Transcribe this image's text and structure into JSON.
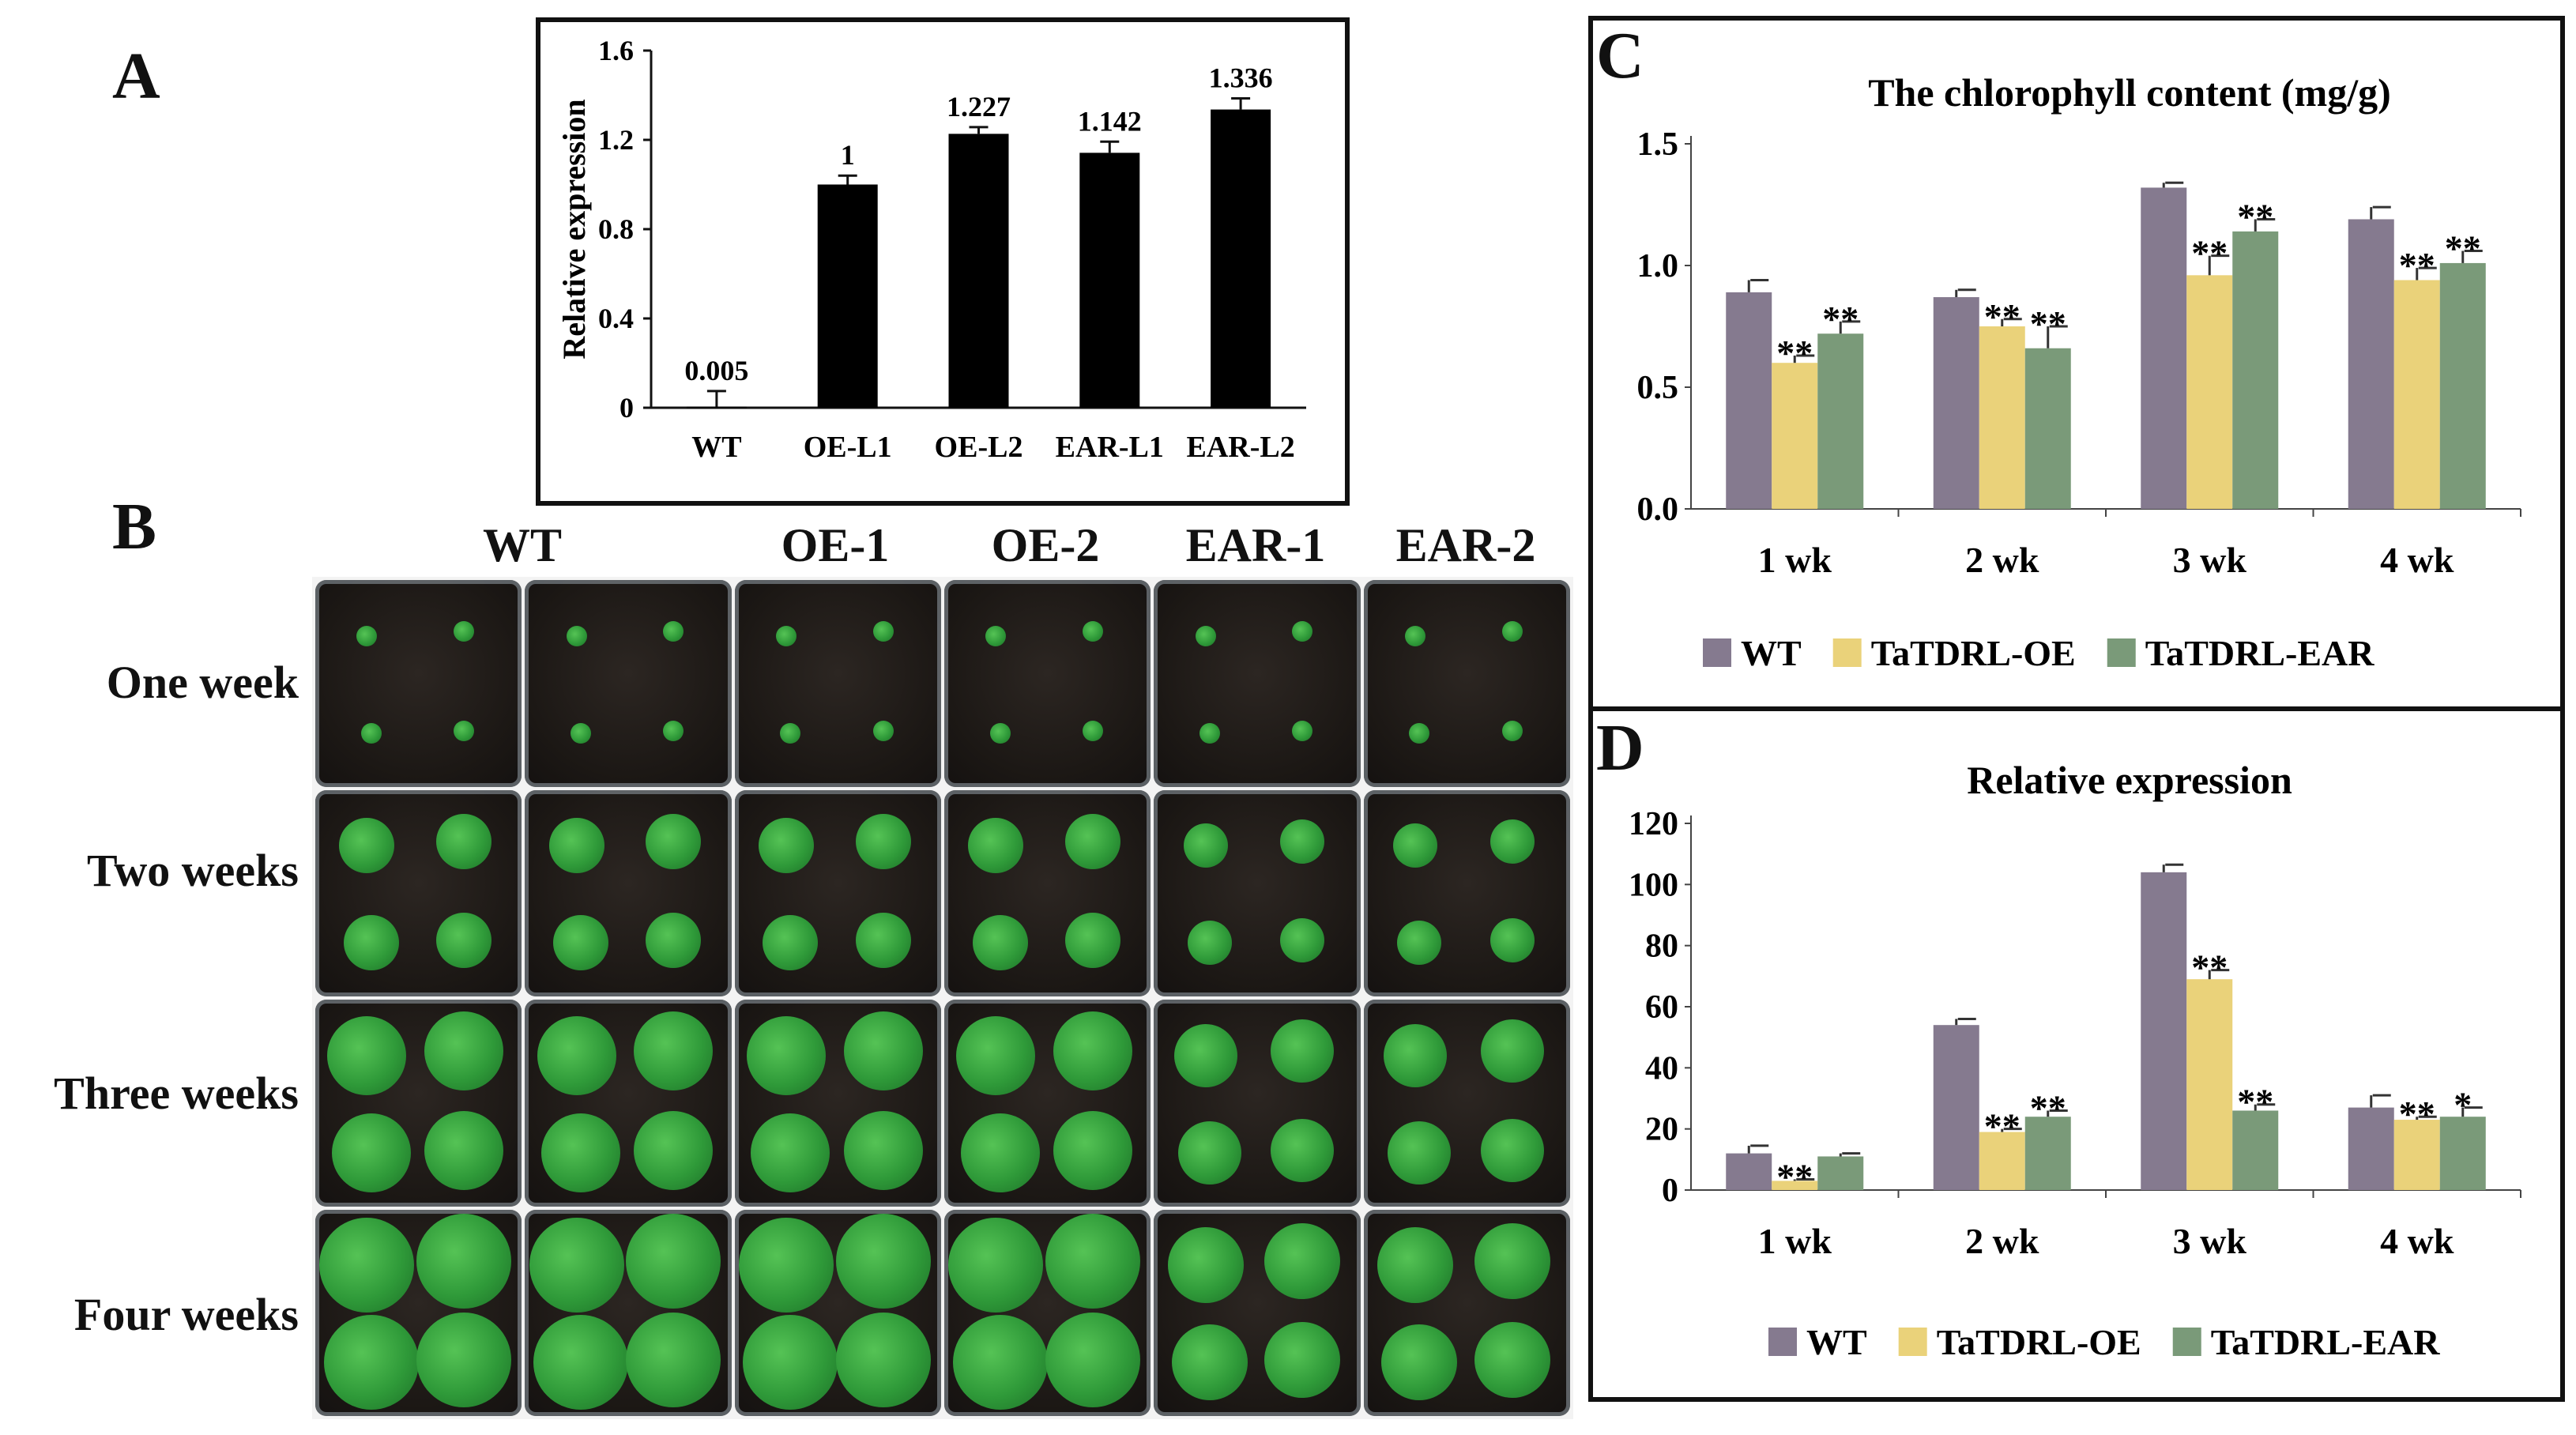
{
  "panels": {
    "a": "A",
    "b": "B",
    "c": "C",
    "d": "D"
  },
  "panel_b": {
    "columns": [
      "WT",
      "OE-1",
      "OE-2",
      "EAR-1",
      "EAR-2"
    ],
    "rows": [
      "One week",
      "Two weeks",
      "Three weeks",
      "Four weeks"
    ]
  },
  "colors": {
    "WT": "#857a8f",
    "TaTDRL-OE": "#ead27a",
    "TaTDRL-EAR": "#7a9a79",
    "bar_black": "#000000"
  },
  "chart_data": [
    {
      "id": "A",
      "type": "bar",
      "title": "",
      "xlabel": "",
      "ylabel": "Relative expression",
      "categories": [
        "WT",
        "OE-L1",
        "OE-L2",
        "EAR-L1",
        "EAR-L2"
      ],
      "values": [
        0.005,
        1,
        1.227,
        1.142,
        1.336
      ],
      "value_labels": [
        "0.005",
        "1",
        "1.227",
        "1.142",
        "1.336"
      ],
      "errors": [
        0.07,
        0.04,
        0.03,
        0.05,
        0.05
      ],
      "ylim": [
        0,
        1.6
      ],
      "yticks": [
        0,
        0.4,
        0.8,
        1.2,
        1.6
      ],
      "ytick_labels": [
        "0",
        "0.4",
        "0.8",
        "1.2",
        "1.6"
      ]
    },
    {
      "id": "C",
      "type": "bar",
      "title": "The chlorophyll content (mg/g)",
      "xlabel": "",
      "ylabel": "",
      "categories": [
        "1 wk",
        "2 wk",
        "3 wk",
        "4 wk"
      ],
      "series": [
        {
          "name": "WT",
          "values": [
            0.89,
            0.87,
            1.32,
            1.19
          ],
          "errors": [
            0.05,
            0.03,
            0.02,
            0.05
          ],
          "marks": [
            "",
            "",
            "",
            ""
          ]
        },
        {
          "name": "TaTDRL-OE",
          "values": [
            0.6,
            0.75,
            0.96,
            0.94
          ],
          "errors": [
            0.03,
            0.03,
            0.08,
            0.05
          ],
          "marks": [
            "**",
            "**",
            "**",
            "**"
          ]
        },
        {
          "name": "TaTDRL-EAR",
          "values": [
            0.72,
            0.66,
            1.14,
            1.01
          ],
          "errors": [
            0.05,
            0.09,
            0.05,
            0.05
          ],
          "marks": [
            "**",
            "**",
            "**",
            "**"
          ]
        }
      ],
      "ylim": [
        0,
        1.5
      ],
      "yticks": [
        0,
        0.5,
        1.0,
        1.5
      ],
      "ytick_labels": [
        "0.0",
        "0.5",
        "1.0",
        "1.5"
      ],
      "legend": "bottom"
    },
    {
      "id": "D",
      "type": "bar",
      "title": "Relative expression",
      "xlabel": "",
      "ylabel": "",
      "categories": [
        "1 wk",
        "2 wk",
        "3 wk",
        "4 wk"
      ],
      "series": [
        {
          "name": "WT",
          "values": [
            12,
            54,
            104,
            27
          ],
          "errors": [
            2.5,
            2,
            2.5,
            4
          ],
          "marks": [
            "",
            "",
            "",
            ""
          ]
        },
        {
          "name": "TaTDRL-OE",
          "values": [
            3,
            19,
            69,
            23
          ],
          "errors": [
            0.5,
            1,
            3,
            1
          ],
          "marks": [
            "**",
            "**",
            "**",
            "**"
          ]
        },
        {
          "name": "TaTDRL-EAR",
          "values": [
            11,
            24,
            26,
            24
          ],
          "errors": [
            1,
            2,
            2,
            3
          ],
          "marks": [
            "",
            "**",
            "**",
            "*"
          ]
        }
      ],
      "ylim": [
        0,
        120
      ],
      "yticks": [
        0,
        20,
        40,
        60,
        80,
        100,
        120
      ],
      "ytick_labels": [
        "0",
        "20",
        "40",
        "60",
        "80",
        "100",
        "120"
      ],
      "legend": "bottom"
    }
  ]
}
